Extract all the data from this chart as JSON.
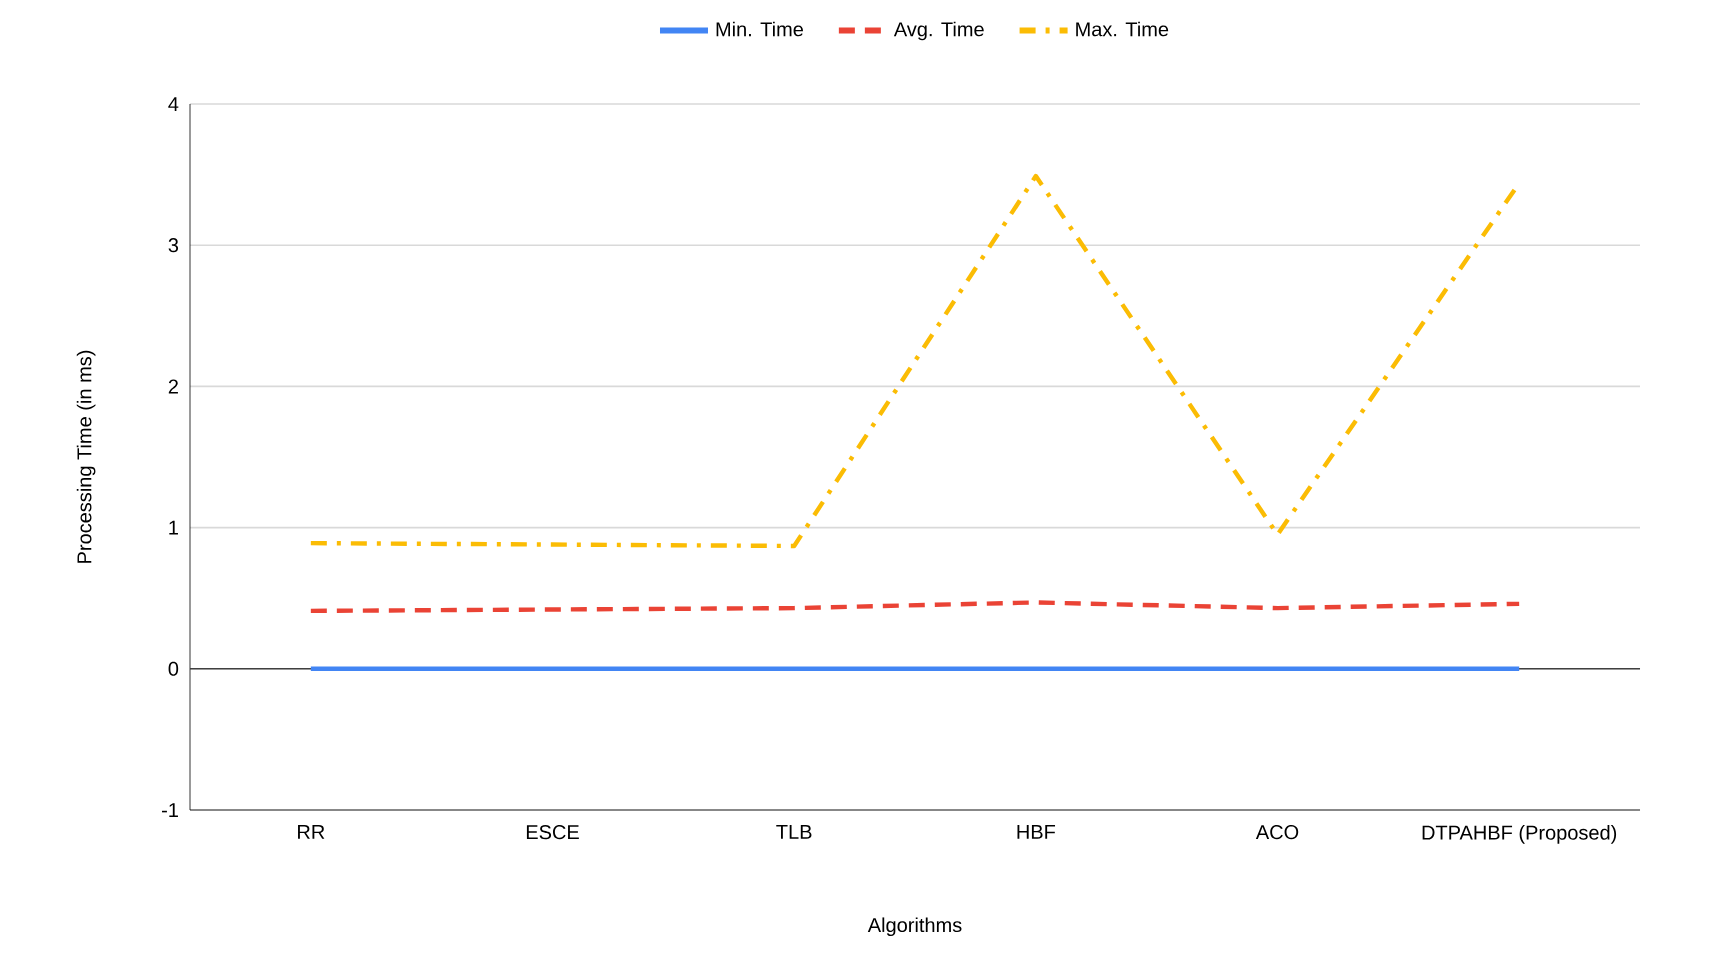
{
  "chart_data": {
    "type": "line",
    "xlabel": "Algorithms",
    "ylabel": "Processing Time (in ms)",
    "categories": [
      "RR",
      "ESCE",
      "TLB",
      "HBF",
      "ACO",
      "DTPAHBF (Proposed)"
    ],
    "series": [
      {
        "name": "Min. Time",
        "color": "#4285f4",
        "line_style": "solid",
        "values": [
          0,
          0,
          0,
          0,
          0,
          0
        ]
      },
      {
        "name": "Avg. Time",
        "color": "#ea4335",
        "line_style": "dashed",
        "values": [
          0.41,
          0.42,
          0.43,
          0.47,
          0.43,
          0.46
        ]
      },
      {
        "name": "Max. Time",
        "color": "#fbbc04",
        "line_style": "dashdot",
        "values": [
          0.89,
          0.88,
          0.87,
          3.49,
          0.95,
          3.44
        ]
      }
    ],
    "ylim": [
      -1,
      4
    ],
    "yticks": [
      -1,
      0,
      1,
      2,
      3,
      4
    ],
    "grid": "y",
    "legend": "top",
    "marker": "none"
  }
}
